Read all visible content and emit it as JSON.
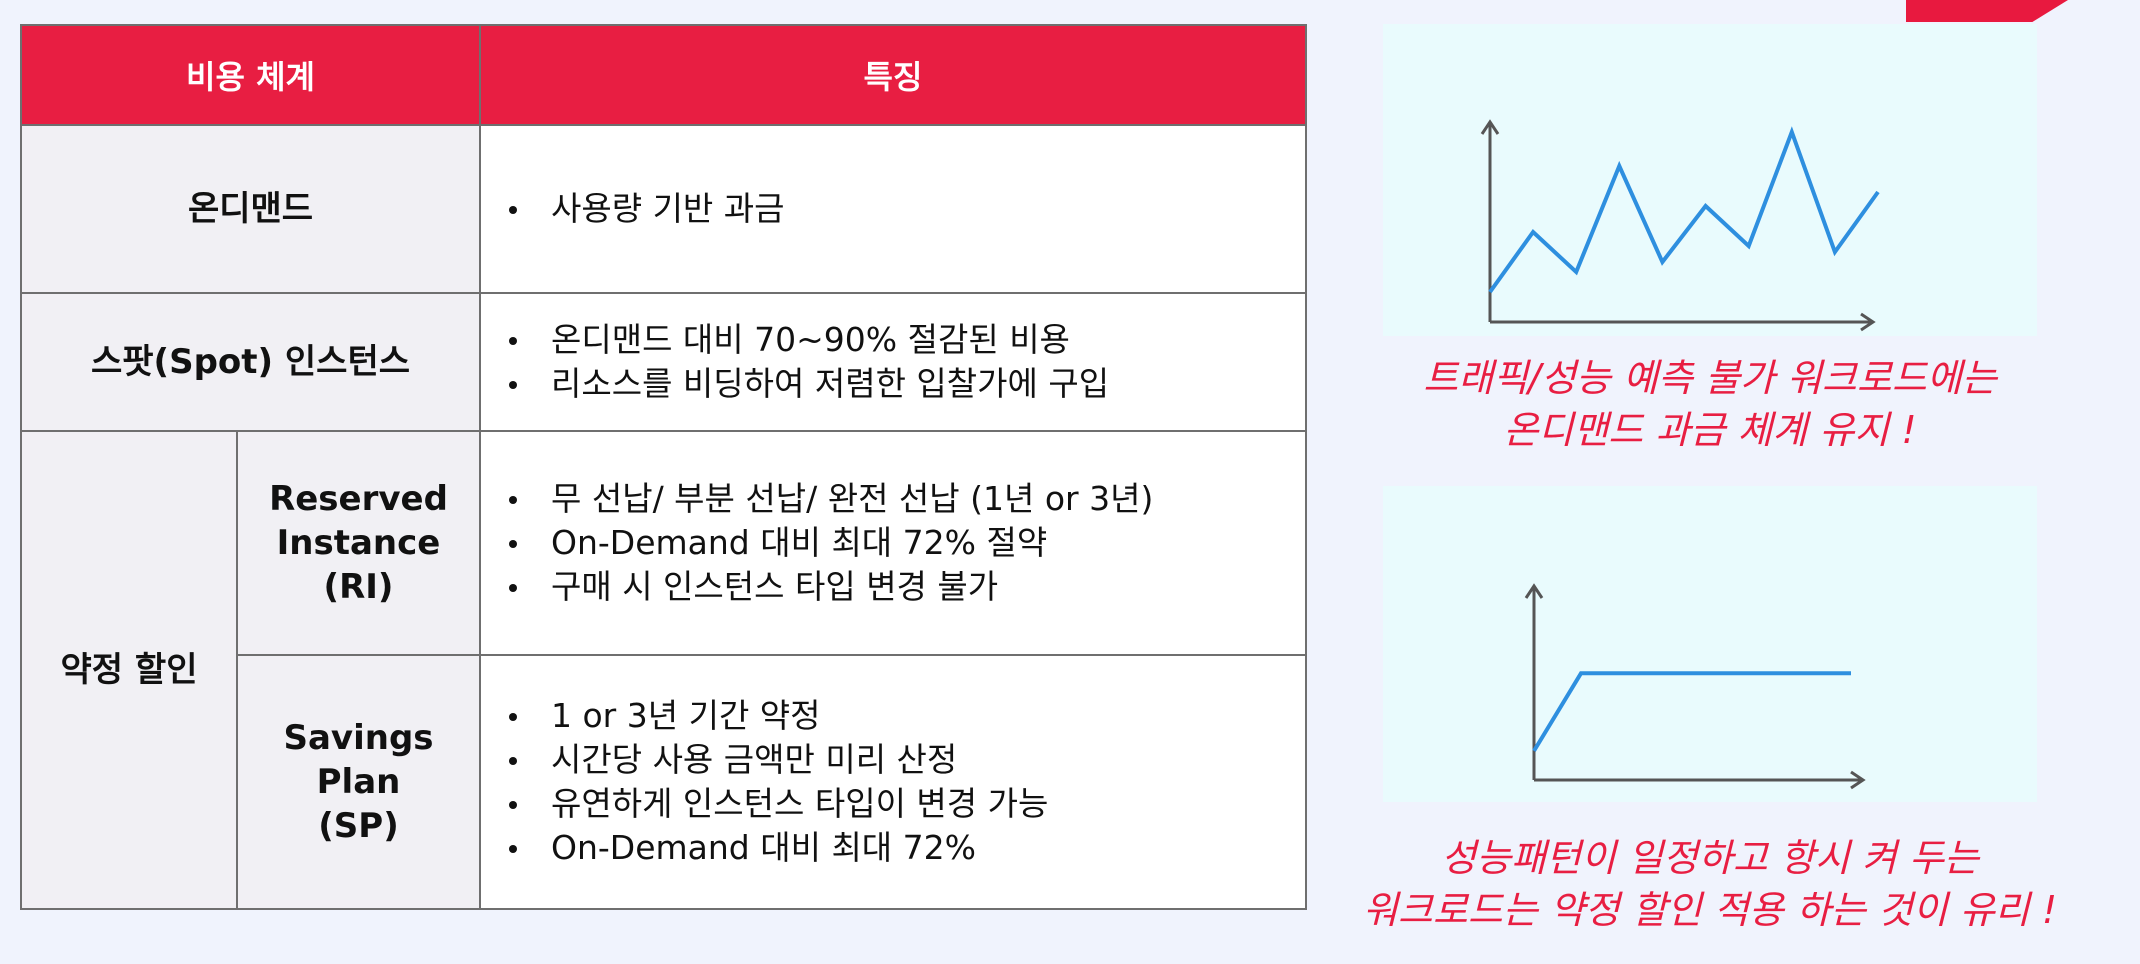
{
  "table": {
    "headers": [
      "비용 체계",
      "특징"
    ],
    "on_demand": {
      "label": "온디맨드",
      "features": [
        "사용량 기반 과금"
      ]
    },
    "spot": {
      "label": "스팟(Spot) 인스턴스",
      "features": [
        "온디맨드 대비 70~90% 절감된 비용",
        "리소스를 비딩하여 저렴한 입찰가에 구입"
      ]
    },
    "commitment": {
      "label": "약정 할인",
      "ri": {
        "label_lines": [
          "Reserved",
          "Instance",
          "(RI)"
        ],
        "features": [
          "무 선납/ 부분 선납/ 완전 선납 (1년 or 3년)",
          "On-Demand 대비 최대 72% 절약",
          "구매 시 인스턴스 타입 변경 불가"
        ]
      },
      "sp": {
        "label_lines": [
          "Savings Plan",
          "(SP)"
        ],
        "features": [
          "1 or 3년 기간 약정",
          "시간당 사용 금액만 미리 산정",
          "유연하게 인스턴스 타입이 변경 가능",
          "On-Demand 대비 최대 72%"
        ]
      }
    }
  },
  "right": {
    "chart1": {
      "type": "line",
      "line_color": "#2e8fdf",
      "values": [
        0.15,
        0.45,
        0.25,
        0.78,
        0.3,
        0.58,
        0.38,
        0.95,
        0.35,
        0.65
      ],
      "caption_lines": [
        "트래픽/성능 예측 불가 워크로드에는",
        "온디맨드 과금 체계 유지 !"
      ]
    },
    "chart2": {
      "type": "line",
      "line_color": "#2e8fdf",
      "values": [
        0.15,
        0.55,
        0.55,
        0.55,
        0.55,
        0.55,
        0.55
      ],
      "caption_lines": [
        "성능패턴이 일정하고 항시 켜 두는",
        "워크로드는 약정 할인 적용 하는 것이 유리 !"
      ]
    }
  }
}
